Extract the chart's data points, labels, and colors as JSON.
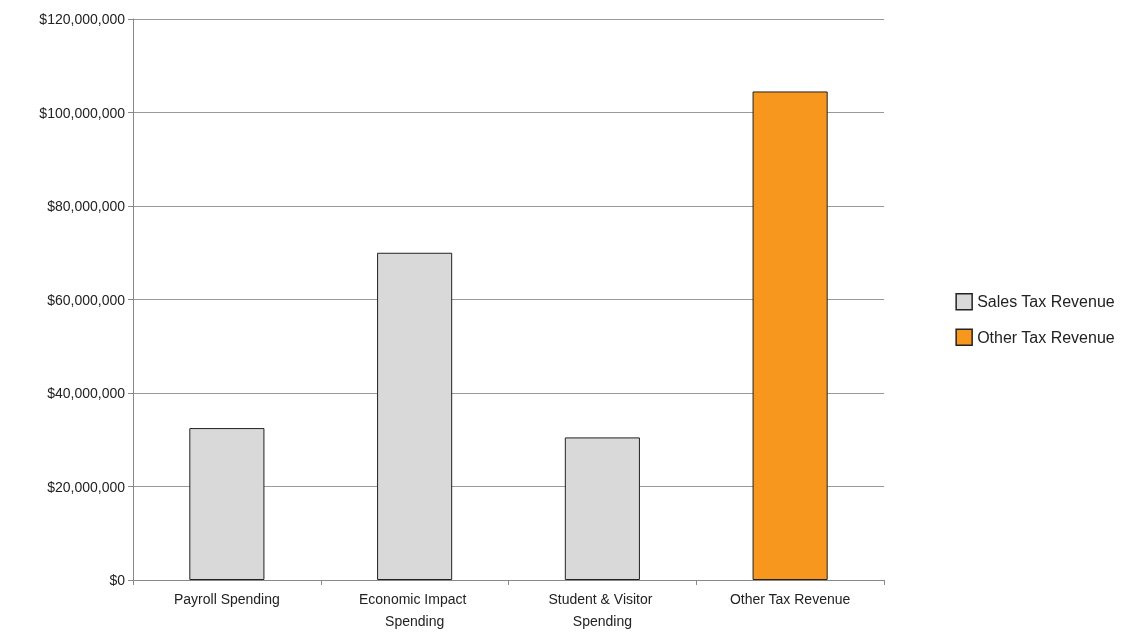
{
  "chart_data": {
    "type": "bar",
    "categories": [
      "Payroll Spending",
      "Economic Impact Spending",
      "Student & Visitor Spending",
      "Other Tax Revenue"
    ],
    "series": [
      {
        "name": "Sales Tax Revenue",
        "color": "#d9d9d9",
        "values": [
          32500000,
          70000000,
          30500000,
          null
        ]
      },
      {
        "name": "Other Tax Revenue",
        "color": "#f7971d",
        "values": [
          null,
          null,
          null,
          104500000
        ]
      }
    ],
    "stacked": true,
    "ylim": [
      0,
      120000000
    ],
    "yticks": [
      {
        "value": 0,
        "label": "$0"
      },
      {
        "value": 20000000,
        "label": "$20,000,000"
      },
      {
        "value": 40000000,
        "label": "$40,000,000"
      },
      {
        "value": 60000000,
        "label": "$60,000,000"
      },
      {
        "value": 80000000,
        "label": "$80,000,000"
      },
      {
        "value": 100000000,
        "label": "$100,000,000"
      },
      {
        "value": 120000000,
        "label": "$120,000,000"
      }
    ],
    "grid": "y",
    "legend": "right"
  }
}
